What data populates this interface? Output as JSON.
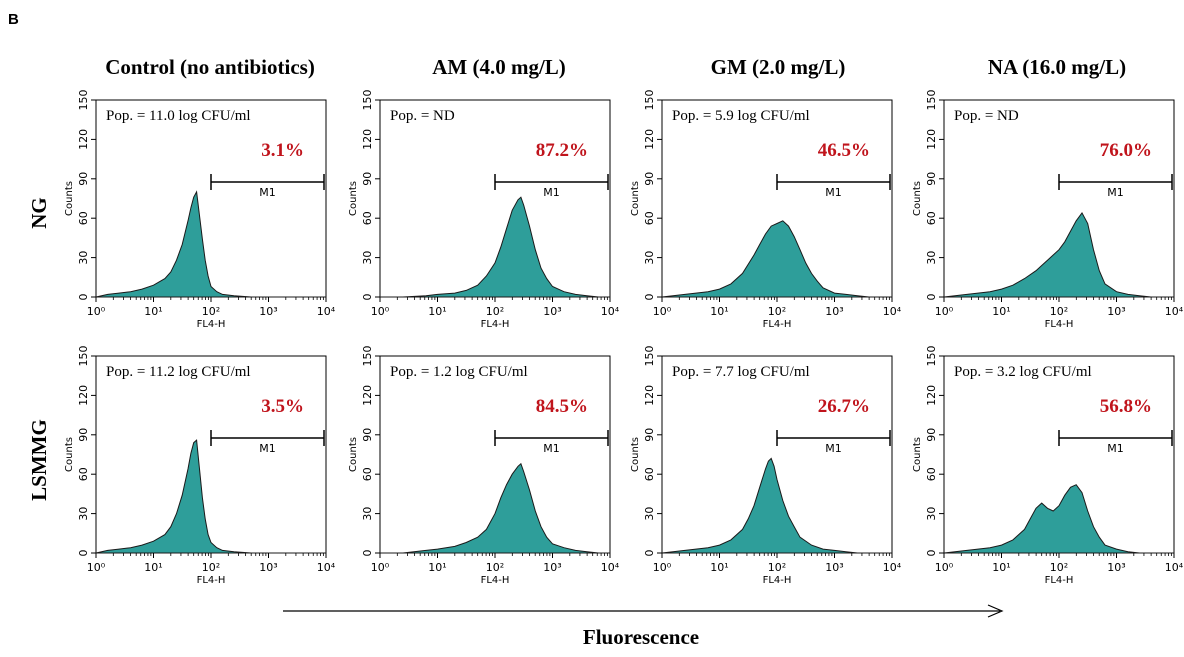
{
  "figure": {
    "panel_letter": "B",
    "x_direction_label": "Fluorescence",
    "pct_color": "#c0141c",
    "hist_fill": "#2e9e9a",
    "hist_stroke": "#1a1a1a"
  },
  "column_titles": [
    "Control (no antibiotics)",
    "AM (4.0 mg/L)",
    "GM (2.0 mg/L)",
    "NA (16.0 mg/L)"
  ],
  "row_titles": [
    "NG",
    "LSMMG"
  ],
  "chart_data": [
    {
      "type": "area",
      "row": "NG",
      "column": "Control (no antibiotics)",
      "population": "Pop. = 11.0 log CFU/ml",
      "gate_percent": "3.1%",
      "gate_label": "M1",
      "gate_range": [
        100,
        10000
      ],
      "xlabel": "FL4-H",
      "ylabel": "Counts",
      "xscale": "log",
      "xlim": [
        1,
        10000
      ],
      "ylim": [
        0,
        150
      ],
      "yticks": [
        0,
        30,
        60,
        90,
        120,
        150
      ],
      "xticks": [
        "10⁰",
        "10¹",
        "10²",
        "10³",
        "10⁴"
      ],
      "x": [
        1,
        1.6,
        2.5,
        4,
        6.3,
        10,
        15.8,
        20,
        25.1,
        31.6,
        39.8,
        44.7,
        50.1,
        56.2,
        63.1,
        70.8,
        79.4,
        89.1,
        100,
        125.9,
        158.5,
        251,
        501,
        1000,
        10000
      ],
      "y": [
        0,
        2,
        3,
        4,
        6,
        9,
        14,
        19,
        28,
        40,
        58,
        68,
        76,
        80,
        62,
        44,
        28,
        16,
        8,
        4,
        2,
        1,
        0,
        0,
        0
      ]
    },
    {
      "type": "area",
      "row": "NG",
      "column": "AM (4.0 mg/L)",
      "population": "Pop. = ND",
      "gate_percent": "87.2%",
      "gate_label": "M1",
      "gate_range": [
        100,
        10000
      ],
      "xlabel": "FL4-H",
      "ylabel": "Counts",
      "xscale": "log",
      "xlim": [
        1,
        10000
      ],
      "ylim": [
        0,
        150
      ],
      "yticks": [
        0,
        30,
        60,
        90,
        120,
        150
      ],
      "xticks": [
        "10⁰",
        "10¹",
        "10²",
        "10³",
        "10⁴"
      ],
      "x": [
        1,
        2.5,
        6.3,
        10,
        20,
        31.6,
        50.1,
        70.8,
        100,
        125.9,
        158.5,
        199.5,
        251,
        281.8,
        316.2,
        398.1,
        501.2,
        631,
        794.3,
        1000,
        1585,
        2512,
        3981,
        6310,
        10000
      ],
      "y": [
        0,
        0,
        1,
        2,
        3,
        5,
        9,
        16,
        26,
        38,
        52,
        66,
        74,
        76,
        70,
        54,
        36,
        22,
        14,
        8,
        4,
        2,
        1,
        0,
        0
      ]
    },
    {
      "type": "area",
      "row": "NG",
      "column": "GM (2.0 mg/L)",
      "population": "Pop. = 5.9 log CFU/ml",
      "gate_percent": "46.5%",
      "gate_label": "M1",
      "gate_range": [
        100,
        10000
      ],
      "xlabel": "FL4-H",
      "ylabel": "Counts",
      "xscale": "log",
      "xlim": [
        1,
        10000
      ],
      "ylim": [
        0,
        150
      ],
      "yticks": [
        0,
        30,
        60,
        90,
        120,
        150
      ],
      "xticks": [
        "10⁰",
        "10¹",
        "10²",
        "10³",
        "10⁴"
      ],
      "x": [
        1,
        2.5,
        6.3,
        10,
        15.8,
        25.1,
        39.8,
        50.1,
        63.1,
        79.4,
        100,
        125.9,
        158.5,
        199.5,
        251,
        316.2,
        398.1,
        501.2,
        631,
        1000,
        1585,
        2512,
        3981,
        6310,
        10000
      ],
      "y": [
        0,
        2,
        4,
        6,
        10,
        18,
        32,
        40,
        48,
        54,
        56,
        58,
        54,
        46,
        36,
        26,
        18,
        12,
        7,
        3,
        2,
        1,
        0,
        0,
        0
      ]
    },
    {
      "type": "area",
      "row": "NG",
      "column": "NA (16.0 mg/L)",
      "population": "Pop. = ND",
      "gate_percent": "76.0%",
      "gate_label": "M1",
      "gate_range": [
        100,
        10000
      ],
      "xlabel": "FL4-H",
      "ylabel": "Counts",
      "xscale": "log",
      "xlim": [
        1,
        10000
      ],
      "ylim": [
        0,
        150
      ],
      "yticks": [
        0,
        30,
        60,
        90,
        120,
        150
      ],
      "xticks": [
        "10⁰",
        "10¹",
        "10²",
        "10³",
        "10⁴"
      ],
      "x": [
        1,
        2.5,
        6.3,
        10,
        15.8,
        25.1,
        39.8,
        50.1,
        63.1,
        79.4,
        100,
        125.9,
        158.5,
        199.5,
        251,
        316.2,
        398.1,
        501.2,
        631,
        1000,
        1585,
        2512,
        3981,
        6310,
        10000
      ],
      "y": [
        0,
        2,
        4,
        6,
        9,
        14,
        20,
        24,
        28,
        32,
        36,
        42,
        50,
        58,
        64,
        56,
        36,
        20,
        10,
        4,
        2,
        1,
        0,
        0,
        0
      ]
    },
    {
      "type": "area",
      "row": "LSMMG",
      "column": "Control (no antibiotics)",
      "population": "Pop. = 11.2 log CFU/ml",
      "gate_percent": "3.5%",
      "gate_label": "M1",
      "gate_range": [
        100,
        10000
      ],
      "xlabel": "FL4-H",
      "ylabel": "Counts",
      "xscale": "log",
      "xlim": [
        1,
        10000
      ],
      "ylim": [
        0,
        150
      ],
      "yticks": [
        0,
        30,
        60,
        90,
        120,
        150
      ],
      "xticks": [
        "10⁰",
        "10¹",
        "10²",
        "10³",
        "10⁴"
      ],
      "x": [
        1,
        1.6,
        2.5,
        4,
        6.3,
        10,
        15.8,
        20,
        25.1,
        31.6,
        39.8,
        44.7,
        50.1,
        56.2,
        63.1,
        70.8,
        79.4,
        89.1,
        100,
        125.9,
        158.5,
        251,
        501,
        1000,
        10000
      ],
      "y": [
        0,
        2,
        3,
        4,
        6,
        9,
        14,
        20,
        30,
        44,
        64,
        76,
        84,
        86,
        64,
        42,
        26,
        14,
        8,
        4,
        2,
        1,
        0,
        0,
        0
      ]
    },
    {
      "type": "area",
      "row": "LSMMG",
      "column": "AM (4.0 mg/L)",
      "population": "Pop. = 1.2 log CFU/ml",
      "gate_percent": "84.5%",
      "gate_label": "M1",
      "gate_range": [
        100,
        10000
      ],
      "xlabel": "FL4-H",
      "ylabel": "Counts",
      "xscale": "log",
      "xlim": [
        1,
        10000
      ],
      "ylim": [
        0,
        150
      ],
      "yticks": [
        0,
        30,
        60,
        90,
        120,
        150
      ],
      "xticks": [
        "10⁰",
        "10¹",
        "10²",
        "10³",
        "10⁴"
      ],
      "x": [
        1,
        2.5,
        6.3,
        10,
        20,
        31.6,
        50.1,
        70.8,
        100,
        125.9,
        158.5,
        199.5,
        251,
        281.8,
        316.2,
        398.1,
        501.2,
        631,
        794.3,
        1000,
        1585,
        2512,
        3981,
        6310,
        10000
      ],
      "y": [
        0,
        0,
        2,
        3,
        5,
        8,
        12,
        18,
        30,
        42,
        52,
        60,
        66,
        68,
        62,
        48,
        32,
        20,
        12,
        7,
        4,
        2,
        1,
        0,
        0
      ]
    },
    {
      "type": "area",
      "row": "LSMMG",
      "column": "GM (2.0 mg/L)",
      "population": "Pop. = 7.7 log CFU/ml",
      "gate_percent": "26.7%",
      "gate_label": "M1",
      "gate_range": [
        100,
        10000
      ],
      "xlabel": "FL4-H",
      "ylabel": "Counts",
      "xscale": "log",
      "xlim": [
        1,
        10000
      ],
      "ylim": [
        0,
        150
      ],
      "yticks": [
        0,
        30,
        60,
        90,
        120,
        150
      ],
      "xticks": [
        "10⁰",
        "10¹",
        "10²",
        "10³",
        "10⁴"
      ],
      "x": [
        1,
        2.5,
        6.3,
        10,
        15.8,
        25.1,
        31.6,
        39.8,
        50.1,
        63.1,
        70.8,
        79.4,
        89.1,
        100,
        125.9,
        158.5,
        199.5,
        251,
        398.1,
        631,
        1000,
        1585,
        2512,
        5012,
        10000
      ],
      "y": [
        0,
        2,
        4,
        6,
        10,
        18,
        26,
        36,
        50,
        64,
        70,
        72,
        66,
        56,
        40,
        28,
        20,
        12,
        6,
        3,
        2,
        1,
        0,
        0,
        0
      ]
    },
    {
      "type": "area",
      "row": "LSMMG",
      "column": "NA (16.0 mg/L)",
      "population": "Pop. = 3.2 log CFU/ml",
      "gate_percent": "56.8%",
      "gate_label": "M1",
      "gate_range": [
        100,
        10000
      ],
      "xlabel": "FL4-H",
      "ylabel": "Counts",
      "xscale": "log",
      "xlim": [
        1,
        10000
      ],
      "ylim": [
        0,
        150
      ],
      "yticks": [
        0,
        30,
        60,
        90,
        120,
        150
      ],
      "xticks": [
        "10⁰",
        "10¹",
        "10²",
        "10³",
        "10⁴"
      ],
      "x": [
        1,
        2.5,
        6.3,
        10,
        15.8,
        25.1,
        31.6,
        39.8,
        50.1,
        63.1,
        79.4,
        100,
        125.9,
        158.5,
        199.5,
        251,
        316.2,
        398.1,
        501.2,
        631,
        1000,
        1585,
        2512,
        5012,
        10000
      ],
      "y": [
        0,
        2,
        4,
        6,
        10,
        18,
        26,
        34,
        38,
        34,
        32,
        36,
        44,
        50,
        52,
        46,
        32,
        20,
        12,
        6,
        3,
        1,
        0,
        0,
        0
      ]
    }
  ]
}
